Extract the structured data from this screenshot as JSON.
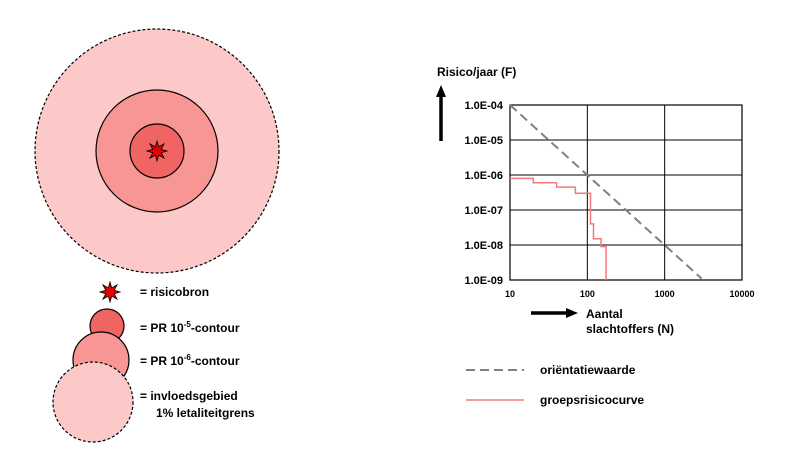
{
  "colors": {
    "zone_outer": "#fcc8c8",
    "zone_middle": "#f89696",
    "zone_inner": "#f06464",
    "star_fill": "#e60000",
    "reference_line": "#808080",
    "risk_curve": "#f27a7a",
    "grid": "#000000"
  },
  "legend": {
    "source_label": "= risicobron",
    "pr5_prefix": "= PR 10",
    "pr5_exponent": "-5",
    "pr5_suffix": "-contour",
    "pr6_prefix": "= PR 10",
    "pr6_exponent": "-6",
    "pr6_suffix": "-contour",
    "influence_line1": "= invloedsgebied",
    "influence_line2": "1% letaliteitgrens"
  },
  "chart_data": {
    "type": "line",
    "title": "",
    "ylabel": "Risico/jaar (F)",
    "xlabel_line1": "Aantal",
    "xlabel_line2": "slachtoffers (N)",
    "xscale": "log",
    "yscale": "log",
    "xlim": [
      10,
      10000
    ],
    "ylim": [
      1e-09,
      0.0001
    ],
    "grid": true,
    "x_ticks": [
      10,
      100,
      1000,
      10000
    ],
    "x_tick_labels": [
      "10",
      "100",
      "1000",
      "10000"
    ],
    "y_ticks": [
      0.0001,
      1e-05,
      1e-06,
      1e-07,
      1e-08,
      1e-09
    ],
    "y_tick_labels": [
      "1.0E-04",
      "1.0E-05",
      "1.0E-06",
      "1.0E-07",
      "1.0E-08",
      "1.0E-09"
    ],
    "series": [
      {
        "name": "oriëntatiewaarde",
        "style": "dashed",
        "x": [
          10,
          3000
        ],
        "y": [
          0.0001,
          1.1e-09
        ]
      },
      {
        "name": "groepsrisicocurve",
        "style": "solid",
        "x": [
          10,
          20,
          20,
          40,
          40,
          70,
          70,
          110,
          110,
          120,
          120,
          150,
          150,
          175,
          175
        ],
        "y": [
          8e-07,
          8e-07,
          6e-07,
          6e-07,
          4.5e-07,
          4.5e-07,
          3e-07,
          3e-07,
          4e-08,
          4e-08,
          1.5e-08,
          1.5e-08,
          9e-09,
          9e-09,
          1e-09
        ]
      }
    ],
    "legend": [
      "oriëntatiewaarde",
      "groepsrisicocurve"
    ]
  }
}
